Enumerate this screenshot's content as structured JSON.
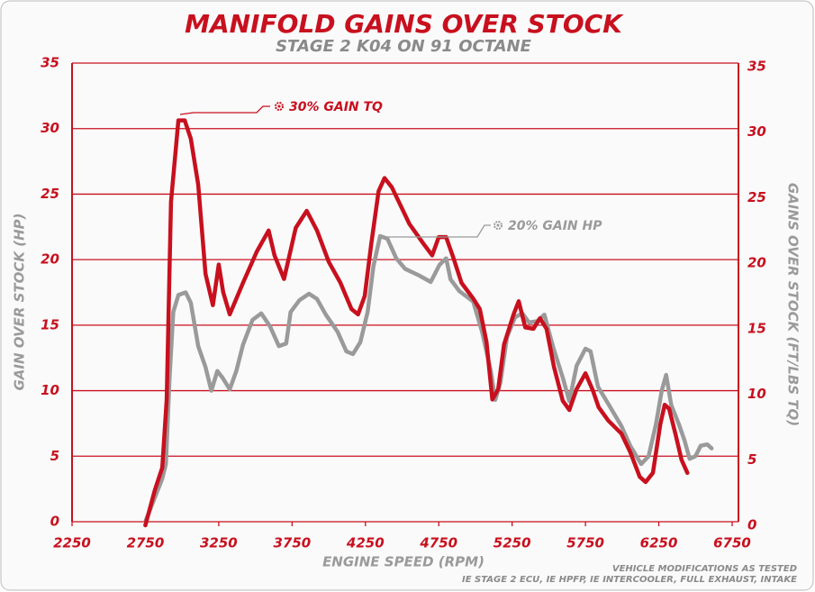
{
  "chart_data": {
    "type": "line",
    "title": "MANIFOLD GAINS OVER STOCK",
    "subtitle": "STAGE 2 K04 ON 91 OCTANE",
    "x_label": "ENGINE SPEED (RPM)",
    "y_label": "GAIN OVER STOCK (HP)",
    "y2_label": "GAINS OVER STOCK (FT/LBS TQ)",
    "annotations": [
      "30% GAIN TQ",
      "20% GAIN HP"
    ],
    "footnote": [
      "VEHICLE MODIFICATIONS AS TESTED",
      "IE STAGE 2 ECU, IE HPFP, IE INTERCOOLER, FULL EXHAUST, INTAKE"
    ],
    "xlim": [
      2250,
      6750
    ],
    "xticks": [
      2250,
      2750,
      3250,
      3750,
      4250,
      4750,
      5250,
      5750,
      6250,
      6750
    ],
    "ylim": [
      0,
      35
    ],
    "yticks": [
      0,
      5,
      10,
      15,
      20,
      25,
      30,
      35
    ],
    "y2lim": [
      0,
      35
    ],
    "y2ticks": [
      0,
      5,
      10,
      15,
      20,
      25,
      30,
      35
    ],
    "grid": true,
    "series": [
      {
        "color": "#9a9a9a",
        "x": [
          2750,
          2865,
          2890,
          2915,
          2940,
          2975,
          3025,
          3060,
          3110,
          3160,
          3200,
          3240,
          3275,
          3325,
          3370,
          3415,
          3480,
          3540,
          3600,
          3660,
          3710,
          3740,
          3800,
          3865,
          3920,
          3980,
          4060,
          4120,
          4165,
          4215,
          4265,
          4305,
          4350,
          4400,
          4460,
          4520,
          4615,
          4695,
          4755,
          4800,
          4830,
          4890,
          4985,
          5045,
          5105,
          5135,
          5170,
          5215,
          5270,
          5320,
          5365,
          5420,
          5470,
          5530,
          5595,
          5640,
          5690,
          5750,
          5785,
          5835,
          5905,
          5995,
          6055,
          6130,
          6180,
          6230,
          6270,
          6300,
          6335,
          6385,
          6425,
          6460,
          6500,
          6535,
          6580,
          6610
        ],
        "values": [
          0,
          3.3,
          4.4,
          11,
          16,
          17.3,
          17.5,
          16.7,
          13.4,
          11.8,
          10.0,
          11.5,
          11.0,
          10.1,
          11.5,
          13.5,
          15.4,
          15.9,
          14.9,
          13.4,
          13.6,
          16,
          16.9,
          17.4,
          17.0,
          15.8,
          14.5,
          13.0,
          12.8,
          13.7,
          16,
          19.5,
          21.8,
          21.6,
          20.1,
          19.3,
          18.8,
          18.3,
          19.6,
          20.1,
          18.5,
          17.6,
          16.8,
          14.5,
          11.5,
          9.3,
          10.6,
          14.1,
          15.6,
          15.9,
          15.2,
          15.3,
          15.8,
          13.3,
          11,
          9.2,
          11.9,
          13.2,
          13.0,
          10.3,
          9.0,
          7.3,
          5.8,
          4.4,
          5.0,
          7.4,
          10.0,
          11.2,
          8.9,
          7.5,
          6.2,
          4.8,
          5.0,
          5.8,
          5.9,
          5.6
        ]
      },
      {
        "color": "#c8101e",
        "axis": "y2",
        "x": [
          2750,
          2815,
          2865,
          2895,
          2925,
          2975,
          3018,
          3060,
          3110,
          3160,
          3210,
          3250,
          3280,
          3325,
          3415,
          3510,
          3590,
          3630,
          3695,
          3775,
          3850,
          3920,
          4000,
          4080,
          4155,
          4200,
          4245,
          4290,
          4340,
          4380,
          4430,
          4490,
          4550,
          4645,
          4705,
          4750,
          4800,
          4850,
          4905,
          4985,
          5030,
          5075,
          5115,
          5155,
          5195,
          5260,
          5295,
          5340,
          5395,
          5440,
          5485,
          5535,
          5595,
          5640,
          5690,
          5750,
          5800,
          5840,
          5905,
          5995,
          6055,
          6120,
          6160,
          6210,
          6260,
          6290,
          6320,
          6365,
          6405,
          6445
        ],
        "values": [
          0,
          2.7,
          4.4,
          9.6,
          24.7,
          30.9,
          30.9,
          29.5,
          26,
          19.2,
          16.8,
          19.9,
          17.8,
          16.1,
          18.5,
          20.9,
          22.5,
          20.6,
          18.8,
          22.7,
          24.0,
          22.5,
          20.1,
          18.5,
          16.5,
          16.1,
          17.5,
          21.5,
          25.5,
          26.5,
          25.8,
          24.4,
          23.0,
          21.5,
          20.6,
          22.0,
          22.0,
          20.4,
          18.5,
          17.3,
          16.5,
          14,
          9.6,
          10.4,
          13.8,
          16.1,
          17.1,
          15.1,
          15.0,
          15.8,
          15.0,
          12.1,
          9.5,
          8.8,
          10.4,
          11.6,
          10.3,
          9.0,
          8.0,
          7.0,
          5.6,
          3.7,
          3.3,
          4.0,
          7.7,
          9.2,
          8.9,
          6.9,
          5.0,
          4.0
        ]
      }
    ]
  }
}
